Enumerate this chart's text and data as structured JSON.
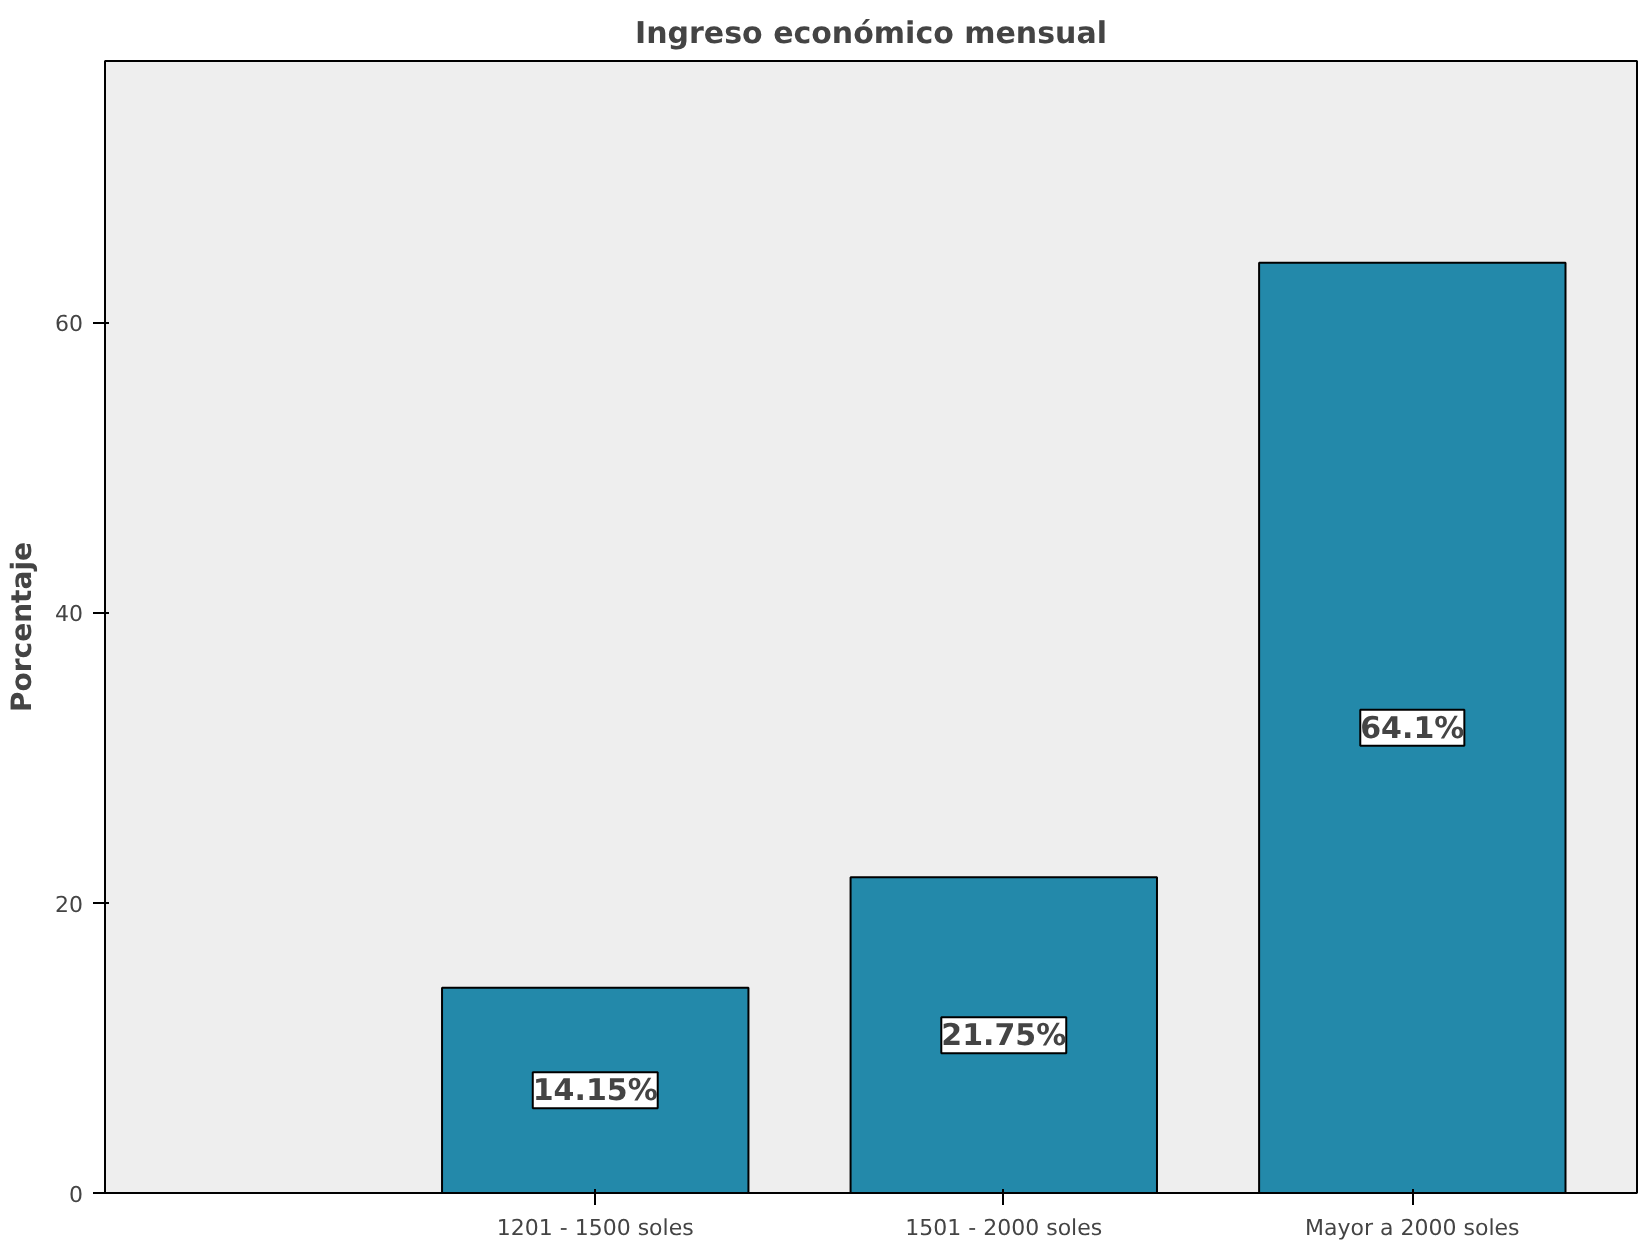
{
  "chart_data": {
    "type": "bar",
    "title": "Ingreso económico mensual",
    "ylabel": "Porcentaje",
    "categories": [
      "1201 - 1500 soles",
      "1501 - 2000 soles",
      "Mayor a 2000 soles"
    ],
    "values": [
      14.15,
      21.75,
      64.1
    ],
    "value_labels": [
      "14.15%",
      "21.75%",
      "64.1%"
    ],
    "color": "#2389aa",
    "ylim": [
      0,
      78
    ],
    "yticks": [
      0,
      20,
      40,
      60
    ],
    "grid": false
  }
}
